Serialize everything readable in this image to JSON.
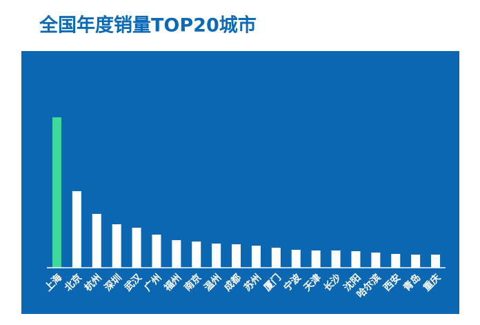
{
  "chart_data": {
    "type": "bar",
    "title": "全国年度销量TOP20城市",
    "categories": [
      "上海",
      "北京",
      "杭州",
      "深圳",
      "武汉",
      "广州",
      "福州",
      "南京",
      "温州",
      "成都",
      "苏州",
      "厦门",
      "宁波",
      "天津",
      "长沙",
      "沈阳",
      "哈尔滨",
      "西安",
      "青岛",
      "重庆"
    ],
    "values": [
      218,
      111,
      78,
      63,
      58,
      48,
      40,
      38,
      35,
      34,
      32,
      29,
      26,
      25,
      25,
      24,
      22,
      20,
      19,
      19
    ],
    "colors": [
      "#3fd99b",
      "#ffffff",
      "#ffffff",
      "#ffffff",
      "#ffffff",
      "#ffffff",
      "#ffffff",
      "#ffffff",
      "#ffffff",
      "#ffffff",
      "#ffffff",
      "#ffffff",
      "#ffffff",
      "#ffffff",
      "#ffffff",
      "#ffffff",
      "#ffffff",
      "#ffffff",
      "#ffffff",
      "#ffffff"
    ],
    "ylim": [
      0,
      250
    ]
  }
}
